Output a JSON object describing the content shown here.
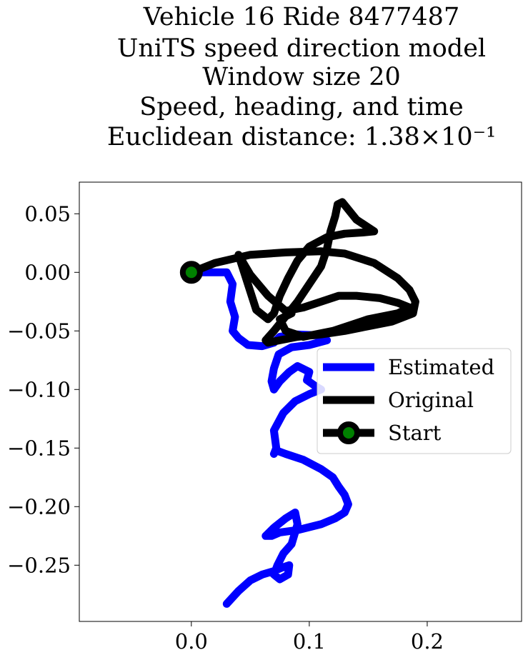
{
  "chart_data": {
    "type": "line",
    "title_lines": [
      "Vehicle 16 Ride 8477487",
      "UniTS speed direction model",
      "Window size 20",
      "Speed, heading, and time",
      "Euclidean distance: 1.38×10⁻¹"
    ],
    "xlabel": "",
    "ylabel": "",
    "xlim": [
      -0.095,
      0.28
    ],
    "ylim": [
      -0.298,
      0.077
    ],
    "xticks": [
      0.0,
      0.1,
      0.2
    ],
    "xtick_labels": [
      "0.0",
      "0.1",
      "0.2"
    ],
    "yticks": [
      0.05,
      0.0,
      -0.05,
      -0.1,
      -0.15,
      -0.2,
      -0.25
    ],
    "ytick_labels": [
      "0.05",
      "0.00",
      "−0.05",
      "−0.10",
      "−0.15",
      "−0.20",
      "−0.25"
    ],
    "grid": false,
    "legend_position": "center-right",
    "series": [
      {
        "name": "Estimated",
        "color": "#0000ff",
        "x": [
          0.0,
          0.015,
          0.03,
          0.035,
          0.033,
          0.037,
          0.035,
          0.04,
          0.048,
          0.06,
          0.07,
          0.075,
          0.09,
          0.11,
          0.115,
          0.1,
          0.085,
          0.074,
          0.07,
          0.068,
          0.07,
          0.075,
          0.083,
          0.09,
          0.1,
          0.098,
          0.105,
          0.11,
          0.1,
          0.088,
          0.078,
          0.07,
          0.072,
          0.07,
          0.071,
          0.072,
          0.08,
          0.095,
          0.11,
          0.12,
          0.125,
          0.13,
          0.133,
          0.13,
          0.122,
          0.11,
          0.09,
          0.075,
          0.068,
          0.063,
          0.07,
          0.08,
          0.088,
          0.09,
          0.085,
          0.078,
          0.073,
          0.07,
          0.075,
          0.082,
          0.083,
          0.077,
          0.07,
          0.06,
          0.05,
          0.04,
          0.03
        ],
        "y": [
          0.0,
          0.0,
          0.0,
          -0.01,
          -0.025,
          -0.038,
          -0.05,
          -0.056,
          -0.062,
          -0.063,
          -0.06,
          -0.055,
          -0.053,
          -0.054,
          -0.058,
          -0.062,
          -0.064,
          -0.07,
          -0.082,
          -0.093,
          -0.1,
          -0.093,
          -0.085,
          -0.08,
          -0.085,
          -0.092,
          -0.097,
          -0.1,
          -0.104,
          -0.11,
          -0.12,
          -0.135,
          -0.15,
          -0.155,
          -0.153,
          -0.152,
          -0.155,
          -0.16,
          -0.168,
          -0.175,
          -0.183,
          -0.19,
          -0.198,
          -0.205,
          -0.21,
          -0.215,
          -0.22,
          -0.222,
          -0.225,
          -0.225,
          -0.218,
          -0.21,
          -0.205,
          -0.215,
          -0.232,
          -0.24,
          -0.25,
          -0.258,
          -0.262,
          -0.258,
          -0.25,
          -0.252,
          -0.255,
          -0.258,
          -0.263,
          -0.272,
          -0.283
        ]
      },
      {
        "name": "Original",
        "color": "#000000",
        "x": [
          0.0,
          0.02,
          0.05,
          0.08,
          0.11,
          0.13,
          0.155,
          0.175,
          0.185,
          0.19,
          0.188,
          0.17,
          0.15,
          0.13,
          0.11,
          0.09,
          0.075,
          0.065,
          0.063,
          0.07,
          0.078,
          0.09,
          0.1,
          0.11,
          0.115,
          0.118,
          0.122,
          0.124,
          0.128,
          0.14,
          0.155,
          0.145,
          0.13,
          0.115,
          0.1,
          0.09,
          0.082,
          0.075,
          0.07,
          0.065,
          0.055,
          0.04,
          0.05,
          0.065,
          0.08,
          0.095,
          0.11,
          0.125,
          0.14,
          0.16,
          0.175,
          0.185,
          0.175,
          0.15,
          0.12,
          0.095,
          0.08,
          0.075,
          0.085
        ],
        "y": [
          0.0,
          0.008,
          0.015,
          0.017,
          0.018,
          0.016,
          0.008,
          -0.005,
          -0.015,
          -0.025,
          -0.035,
          -0.042,
          -0.046,
          -0.05,
          -0.053,
          -0.055,
          -0.058,
          -0.06,
          -0.058,
          -0.05,
          -0.04,
          -0.025,
          -0.01,
          0.005,
          0.02,
          0.035,
          0.048,
          0.058,
          0.06,
          0.045,
          0.035,
          0.034,
          0.033,
          0.03,
          0.022,
          0.01,
          -0.005,
          -0.02,
          -0.035,
          -0.04,
          -0.032,
          0.015,
          -0.002,
          -0.02,
          -0.033,
          -0.03,
          -0.025,
          -0.02,
          -0.02,
          -0.022,
          -0.026,
          -0.03,
          -0.035,
          -0.04,
          -0.05,
          -0.055,
          -0.05,
          -0.04,
          -0.035
        ]
      },
      {
        "name": "Start",
        "color": "#000000",
        "marker_face": "#008000",
        "x": [
          0.0
        ],
        "y": [
          0.0
        ]
      }
    ]
  }
}
